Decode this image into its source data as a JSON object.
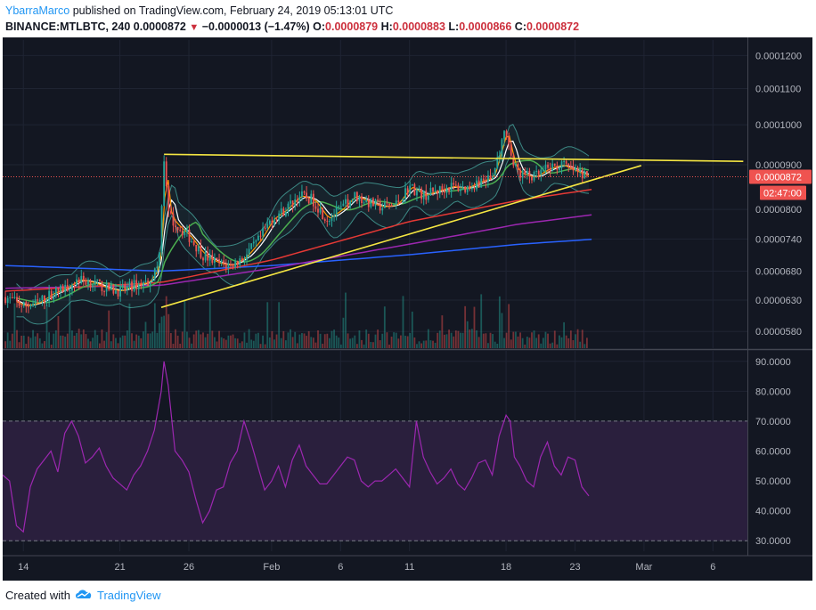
{
  "header": {
    "author": "YbarraMarco",
    "published": "published on TradingView.com, February 24, 2019 05:13:01 UTC",
    "symbol": "BINANCE:MTLBTC, 240",
    "last": "0.0000872",
    "arrow": "▼",
    "change": "−0.0000013 (−1.47%)",
    "o_label": "O:",
    "o_value": "0.0000879",
    "h_label": "H:",
    "h_value": "0.0000883",
    "l_label": "L:",
    "l_value": "0.0000866",
    "c_label": "C:",
    "c_value": "0.0000872"
  },
  "price_badge": "0.0000872",
  "countdown_badge": "02:47:00",
  "footer": {
    "created": "Created with",
    "brand": "TradingView",
    "logo_icon": "tradingview-cloud-icon"
  },
  "colors": {
    "background": "#131722",
    "up": "#26a69a",
    "down": "#ef5350",
    "trendline": "#f5e642",
    "bollinger": "#4db6ac",
    "sma_white": "#ffffff",
    "ema_orange": "#ff9800",
    "ema_green": "#4caf50",
    "ema_red": "#e53935",
    "ema_purple": "#9c27b0",
    "ema_blue": "#2962ff",
    "rsi": "#9c27b0",
    "rsi_band": "#2a1f3d",
    "badge_red": "#ef5350"
  },
  "chart_data": [
    {
      "type": "candlestick",
      "title": "",
      "y_ticks": [
        "0.0001200",
        "0.0001100",
        "0.0001000",
        "0.0000900",
        "0.0000800",
        "0.0000740",
        "0.0000680",
        "0.0000630",
        "0.0000580"
      ],
      "y_tick_values": [
        0.00012,
        0.00011,
        0.0001,
        9e-05,
        8e-05,
        7.4e-05,
        6.8e-05,
        6.3e-05,
        5.8e-05
      ],
      "x_ticks": [
        "14",
        "21",
        "26",
        "Feb",
        "6",
        "11",
        "18",
        "23",
        "Mar",
        "6"
      ],
      "x_tick_days": [
        0,
        7,
        12,
        18,
        23,
        28,
        35,
        40,
        45,
        50
      ],
      "xlim_days": [
        -1.5,
        52.5
      ],
      "ylim": [
        5.55e-05,
        0.000125
      ],
      "log_scale": true,
      "close_path": [
        [
          -1.3,
          6.35e-05
        ],
        [
          0,
          6.2e-05
        ],
        [
          1,
          6.25e-05
        ],
        [
          2,
          6.4e-05
        ],
        [
          3,
          6.5e-05
        ],
        [
          4,
          6.65e-05
        ],
        [
          5,
          6.6e-05
        ],
        [
          6,
          6.5e-05
        ],
        [
          7,
          6.45e-05
        ],
        [
          8,
          6.55e-05
        ],
        [
          9,
          6.6e-05
        ],
        [
          9.8,
          6.9e-05
        ],
        [
          10.2,
          9.15e-05
        ],
        [
          10.5,
          7.9e-05
        ],
        [
          11,
          7.7e-05
        ],
        [
          12,
          7.45e-05
        ],
        [
          13,
          7.1e-05
        ],
        [
          14,
          6.95e-05
        ],
        [
          15,
          6.9e-05
        ],
        [
          16,
          7.05e-05
        ],
        [
          17,
          7.35e-05
        ],
        [
          18,
          7.8e-05
        ],
        [
          19,
          8e-05
        ],
        [
          20,
          8.3e-05
        ],
        [
          21,
          8.2e-05
        ],
        [
          22,
          7.8e-05
        ],
        [
          23,
          8e-05
        ],
        [
          24,
          8.3e-05
        ],
        [
          25,
          8.15e-05
        ],
        [
          26,
          8.05e-05
        ],
        [
          27,
          8.1e-05
        ],
        [
          28,
          8.5e-05
        ],
        [
          29,
          8.3e-05
        ],
        [
          30,
          8.4e-05
        ],
        [
          31,
          8.5e-05
        ],
        [
          32,
          8.45e-05
        ],
        [
          33,
          8.6e-05
        ],
        [
          34,
          8.7e-05
        ],
        [
          35,
          9.9e-05
        ],
        [
          35.5,
          9e-05
        ],
        [
          36,
          8.8e-05
        ],
        [
          37,
          8.7e-05
        ],
        [
          38,
          8.9e-05
        ],
        [
          39,
          9e-05
        ],
        [
          40,
          8.85e-05
        ],
        [
          41,
          8.72e-05
        ]
      ],
      "overlays": {
        "trend_upper": [
          [
            10.2,
            9.25e-05
          ],
          [
            52.2,
            9.08e-05
          ]
        ],
        "trend_lower": [
          [
            10.0,
            6.18e-05
          ],
          [
            44.8,
            8.98e-05
          ]
        ],
        "ema_red": [
          [
            -1.3,
            6.45e-05
          ],
          [
            10,
            6.6e-05
          ],
          [
            18,
            7e-05
          ],
          [
            28,
            7.75e-05
          ],
          [
            36,
            8.2e-05
          ],
          [
            41.6,
            8.45e-05
          ]
        ],
        "ema_purple": [
          [
            -1.3,
            6.5e-05
          ],
          [
            10,
            6.55e-05
          ],
          [
            18,
            6.85e-05
          ],
          [
            28,
            7.3e-05
          ],
          [
            36,
            7.7e-05
          ],
          [
            41.6,
            7.9e-05
          ]
        ],
        "ema_blue": [
          [
            -1.3,
            6.9e-05
          ],
          [
            10,
            6.8e-05
          ],
          [
            18,
            6.9e-05
          ],
          [
            28,
            7.1e-05
          ],
          [
            36,
            7.3e-05
          ],
          [
            41.6,
            7.4e-05
          ]
        ]
      },
      "price_line": 8.72e-05
    },
    {
      "type": "line",
      "title": "",
      "series": [
        {
          "x": [
            -1.5,
            -1,
            -0.5,
            0,
            0.5,
            1,
            1.5,
            2,
            2.5,
            3,
            3.5,
            4,
            4.5,
            5,
            5.5,
            6,
            6.5,
            7,
            7.5,
            8,
            8.5,
            9,
            9.5,
            10,
            10.2,
            10.5,
            11,
            11.5,
            12,
            12.5,
            13,
            13.5,
            14,
            14.5,
            15,
            15.5,
            16,
            16.5,
            17,
            17.5,
            18,
            18.5,
            19,
            19.5,
            20,
            20.5,
            21,
            21.5,
            22,
            22.5,
            23,
            23.5,
            24,
            24.5,
            25,
            25.5,
            26,
            26.5,
            27,
            27.5,
            28,
            28.5,
            29,
            29.5,
            30,
            30.5,
            31,
            31.5,
            32,
            32.5,
            33,
            33.5,
            34,
            34.5,
            35,
            35.3,
            35.6,
            36,
            36.5,
            37,
            37.5,
            38,
            38.5,
            39,
            39.5,
            40,
            40.5,
            41
          ],
          "y": [
            52,
            50,
            35,
            33,
            48,
            54,
            57,
            60,
            53,
            66,
            70,
            65,
            56,
            58,
            61,
            55,
            51,
            49,
            47,
            52,
            55,
            60,
            67,
            80,
            90,
            82,
            60,
            57,
            53,
            44,
            36,
            40,
            47,
            48,
            56,
            60,
            70,
            63,
            55,
            47,
            50,
            55,
            48,
            57,
            62,
            55,
            52,
            49,
            49,
            52,
            55,
            58,
            57,
            50,
            48,
            50,
            50,
            52,
            54,
            51,
            48,
            70,
            58,
            53,
            49,
            51,
            54,
            49,
            47,
            51,
            56,
            57,
            52,
            65,
            72,
            70,
            58,
            55,
            50,
            48,
            58,
            63,
            55,
            52,
            58,
            57,
            48,
            45
          ]
        }
      ],
      "y_ticks": [
        "90.0000",
        "80.0000",
        "70.0000",
        "60.0000",
        "50.0000",
        "40.0000",
        "30.0000"
      ],
      "y_tick_values": [
        90,
        80,
        70,
        60,
        50,
        40,
        30
      ],
      "ylim": [
        26.5,
        93.5
      ],
      "band": [
        30,
        70
      ]
    }
  ]
}
